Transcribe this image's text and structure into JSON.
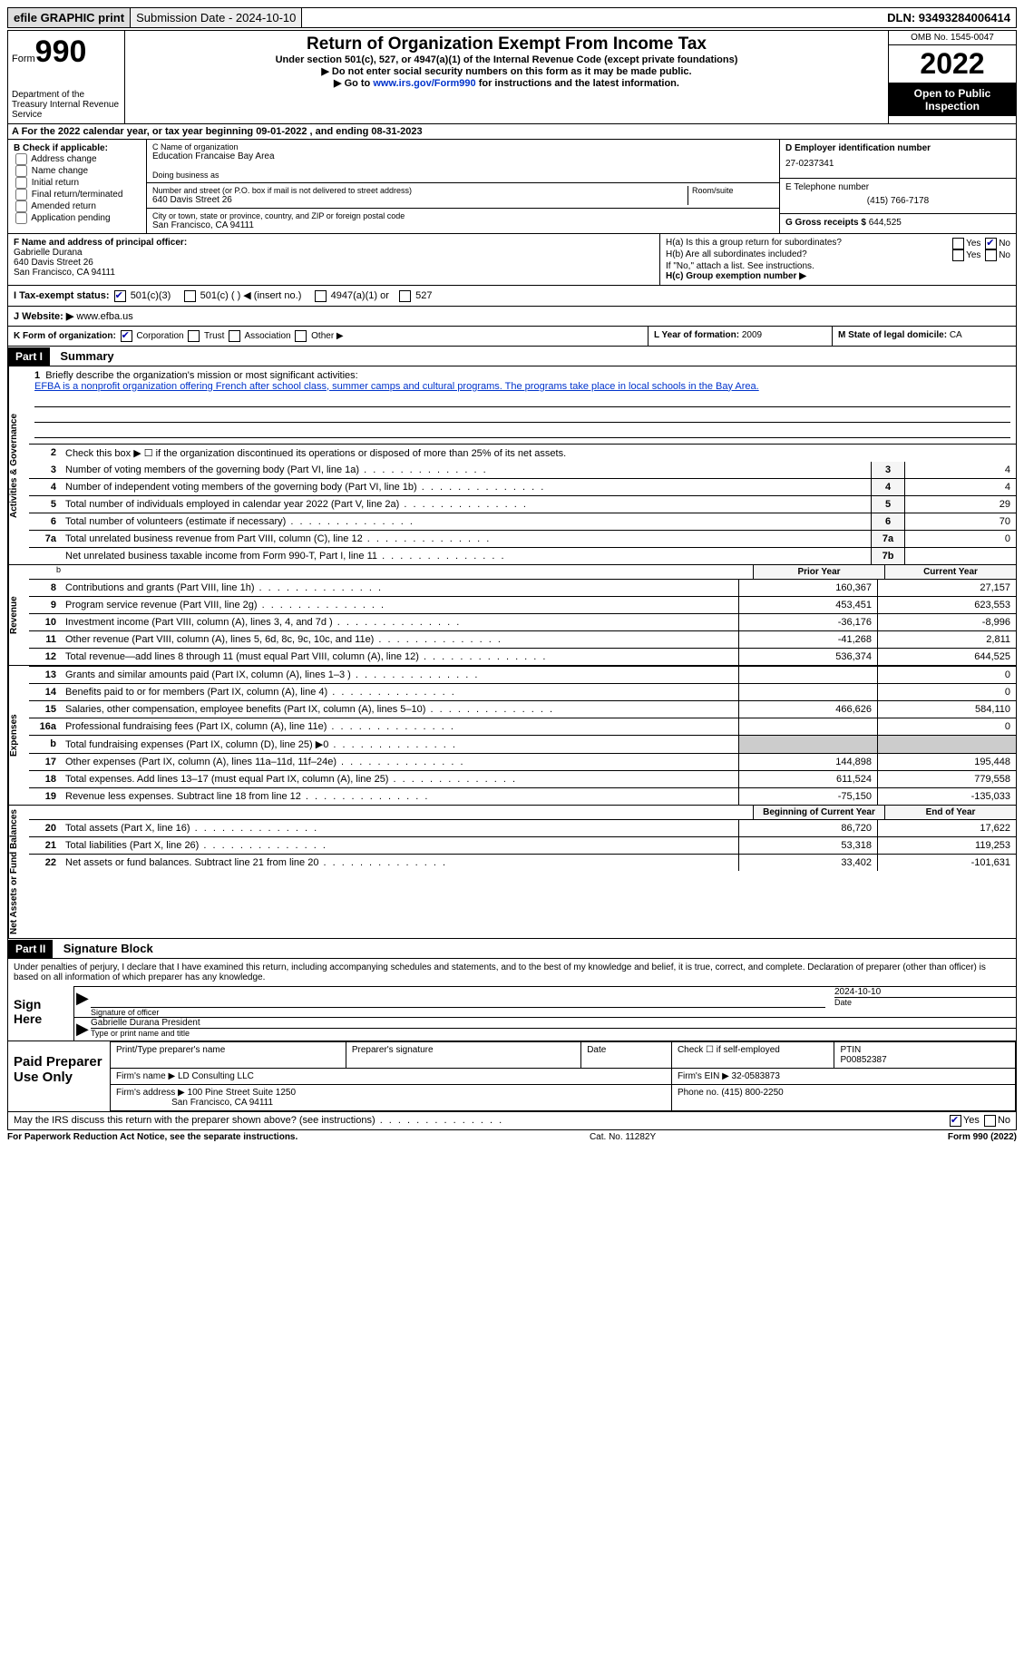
{
  "topbar": {
    "efile": "efile GRAPHIC print",
    "submission": "Submission Date - 2024-10-10",
    "dln": "DLN: 93493284006414"
  },
  "header": {
    "form_word": "Form",
    "form_num": "990",
    "dept": "Department of the Treasury Internal Revenue Service",
    "title": "Return of Organization Exempt From Income Tax",
    "sub": "Under section 501(c), 527, or 4947(a)(1) of the Internal Revenue Code (except private foundations)",
    "inst1": "▶ Do not enter social security numbers on this form as it may be made public.",
    "inst2_prefix": "▶ Go to ",
    "inst2_link": "www.irs.gov/Form990",
    "inst2_suffix": " for instructions and the latest information.",
    "omb": "OMB No. 1545-0047",
    "year": "2022",
    "otp": "Open to Public Inspection"
  },
  "calendar": "A For the 2022 calendar year, or tax year beginning 09-01-2022     , and ending 08-31-2023",
  "check_b": {
    "label": "B Check if applicable:",
    "items": [
      "Address change",
      "Name change",
      "Initial return",
      "Final return/terminated",
      "Amended return",
      "Application pending"
    ]
  },
  "org": {
    "c_label": "C Name of organization",
    "name": "Education Francaise Bay Area",
    "dba_label": "Doing business as",
    "street_label": "Number and street (or P.O. box if mail is not delivered to street address)",
    "room_label": "Room/suite",
    "street": "640 Davis Street 26",
    "city_label": "City or town, state or province, country, and ZIP or foreign postal code",
    "city": "San Francisco, CA  94111"
  },
  "col_d": {
    "ein_label": "D Employer identification number",
    "ein": "27-0237341",
    "phone_label": "E Telephone number",
    "phone": "(415) 766-7178",
    "gross_label": "G Gross receipts $",
    "gross": "644,525"
  },
  "officer": {
    "f_label": "F Name and address of principal officer:",
    "name": "Gabrielle Durana",
    "street": "640 Davis Street 26",
    "city": "San Francisco, CA  94111"
  },
  "h_section": {
    "a": "H(a)  Is this a group return for subordinates?",
    "b": "H(b)  Are all subordinates included?",
    "b_note": "If \"No,\" attach a list. See instructions.",
    "c": "H(c)  Group exemption number ▶",
    "yes": "Yes",
    "no": "No"
  },
  "tax_exempt": {
    "label": "I  Tax-exempt status:",
    "opt1": "501(c)(3)",
    "opt2": "501(c) (   ) ◀ (insert no.)",
    "opt3": "4947(a)(1) or",
    "opt4": "527"
  },
  "website": {
    "label": "J Website: ▶",
    "value": "www.efba.us"
  },
  "k": {
    "label": "K Form of organization:",
    "opts": [
      "Corporation",
      "Trust",
      "Association",
      "Other ▶"
    ]
  },
  "l": {
    "label": "L Year of formation:",
    "value": "2009"
  },
  "m": {
    "label": "M State of legal domicile:",
    "value": "CA"
  },
  "part1": {
    "label": "Part I",
    "title": "Summary"
  },
  "mission": {
    "num": "1",
    "label": "Briefly describe the organization's mission or most significant activities:",
    "text": "EFBA is a nonprofit organization offering French after school class, summer camps and cultural programs. The programs take place in local schools in the Bay Area."
  },
  "line2": {
    "num": "2",
    "text": "Check this box ▶ ☐ if the organization discontinued its operations or disposed of more than 25% of its net assets."
  },
  "governance_lines": [
    {
      "num": "3",
      "desc": "Number of voting members of the governing body (Part VI, line 1a)",
      "box": "3",
      "val": "4"
    },
    {
      "num": "4",
      "desc": "Number of independent voting members of the governing body (Part VI, line 1b)",
      "box": "4",
      "val": "4"
    },
    {
      "num": "5",
      "desc": "Total number of individuals employed in calendar year 2022 (Part V, line 2a)",
      "box": "5",
      "val": "29"
    },
    {
      "num": "6",
      "desc": "Total number of volunteers (estimate if necessary)",
      "box": "6",
      "val": "70"
    },
    {
      "num": "7a",
      "desc": "Total unrelated business revenue from Part VIII, column (C), line 12",
      "box": "7a",
      "val": "0"
    },
    {
      "num": "",
      "desc": "Net unrelated business taxable income from Form 990-T, Part I, line 11",
      "box": "7b",
      "val": ""
    }
  ],
  "col_headers": {
    "prior": "Prior Year",
    "current": "Current Year",
    "begin": "Beginning of Current Year",
    "end": "End of Year"
  },
  "revenue_lines": [
    {
      "num": "8",
      "desc": "Contributions and grants (Part VIII, line 1h)",
      "prior": "160,367",
      "curr": "27,157"
    },
    {
      "num": "9",
      "desc": "Program service revenue (Part VIII, line 2g)",
      "prior": "453,451",
      "curr": "623,553"
    },
    {
      "num": "10",
      "desc": "Investment income (Part VIII, column (A), lines 3, 4, and 7d )",
      "prior": "-36,176",
      "curr": "-8,996"
    },
    {
      "num": "11",
      "desc": "Other revenue (Part VIII, column (A), lines 5, 6d, 8c, 9c, 10c, and 11e)",
      "prior": "-41,268",
      "curr": "2,811"
    },
    {
      "num": "12",
      "desc": "Total revenue—add lines 8 through 11 (must equal Part VIII, column (A), line 12)",
      "prior": "536,374",
      "curr": "644,525"
    }
  ],
  "expense_lines": [
    {
      "num": "13",
      "desc": "Grants and similar amounts paid (Part IX, column (A), lines 1–3 )",
      "prior": "",
      "curr": "0"
    },
    {
      "num": "14",
      "desc": "Benefits paid to or for members (Part IX, column (A), line 4)",
      "prior": "",
      "curr": "0"
    },
    {
      "num": "15",
      "desc": "Salaries, other compensation, employee benefits (Part IX, column (A), lines 5–10)",
      "prior": "466,626",
      "curr": "584,110"
    },
    {
      "num": "16a",
      "desc": "Professional fundraising fees (Part IX, column (A), line 11e)",
      "prior": "",
      "curr": "0"
    },
    {
      "num": "b",
      "desc": "Total fundraising expenses (Part IX, column (D), line 25) ▶0",
      "prior": "SHADE",
      "curr": "SHADE"
    },
    {
      "num": "17",
      "desc": "Other expenses (Part IX, column (A), lines 11a–11d, 11f–24e)",
      "prior": "144,898",
      "curr": "195,448"
    },
    {
      "num": "18",
      "desc": "Total expenses. Add lines 13–17 (must equal Part IX, column (A), line 25)",
      "prior": "611,524",
      "curr": "779,558"
    },
    {
      "num": "19",
      "desc": "Revenue less expenses. Subtract line 18 from line 12",
      "prior": "-75,150",
      "curr": "-135,033"
    }
  ],
  "net_lines": [
    {
      "num": "20",
      "desc": "Total assets (Part X, line 16)",
      "prior": "86,720",
      "curr": "17,622"
    },
    {
      "num": "21",
      "desc": "Total liabilities (Part X, line 26)",
      "prior": "53,318",
      "curr": "119,253"
    },
    {
      "num": "22",
      "desc": "Net assets or fund balances. Subtract line 21 from line 20",
      "prior": "33,402",
      "curr": "-101,631"
    }
  ],
  "part2": {
    "label": "Part II",
    "title": "Signature Block"
  },
  "sig": {
    "decl": "Under penalties of perjury, I declare that I have examined this return, including accompanying schedules and statements, and to the best of my knowledge and belief, it is true, correct, and complete. Declaration of preparer (other than officer) is based on all information of which preparer has any knowledge.",
    "sign_here": "Sign Here",
    "sig_of_officer": "Signature of officer",
    "date_label": "Date",
    "date": "2024-10-10",
    "name_title": "Gabrielle Durana  President",
    "type_label": "Type or print name and title"
  },
  "paid": {
    "label": "Paid Preparer Use Only",
    "print_label": "Print/Type preparer's name",
    "sig_label": "Preparer's signature",
    "date_label": "Date",
    "check_label": "Check ☐ if self-employed",
    "ptin_label": "PTIN",
    "ptin": "P00852387",
    "firm_name_label": "Firm's name    ▶",
    "firm_name": "LD Consulting LLC",
    "firm_ein_label": "Firm's EIN ▶",
    "firm_ein": "32-0583873",
    "firm_addr_label": "Firm's address ▶",
    "firm_addr1": "100 Pine Street Suite 1250",
    "firm_addr2": "San Francisco, CA  94111",
    "phone_label": "Phone no.",
    "phone": "(415) 800-2250"
  },
  "discuss": {
    "text": "May the IRS discuss this return with the preparer shown above? (see instructions)",
    "yes": "Yes",
    "no": "No"
  },
  "bottom": {
    "notice": "For Paperwork Reduction Act Notice, see the separate instructions.",
    "cat": "Cat. No. 11282Y",
    "form": "Form 990 (2022)"
  },
  "side_labels": {
    "gov": "Activities & Governance",
    "rev": "Revenue",
    "exp": "Expenses",
    "net": "Net Assets or Fund Balances"
  }
}
